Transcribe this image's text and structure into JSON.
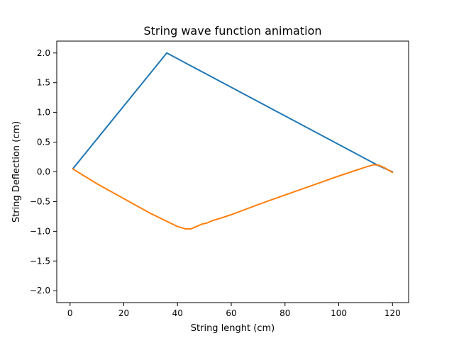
{
  "chart_data": {
    "type": "line",
    "title": "String wave function animation",
    "xlabel": "String lenght (cm)",
    "ylabel": "String Deflection (cm)",
    "xlim": [
      -4.95,
      126.0
    ],
    "ylim": [
      -2.2,
      2.2
    ],
    "xticks": [
      0,
      20,
      40,
      60,
      80,
      100,
      120
    ],
    "yticks": [
      -2.0,
      -1.5,
      -1.0,
      -0.5,
      0.0,
      0.5,
      1.0,
      1.5,
      2.0
    ],
    "xtick_labels": [
      "0",
      "20",
      "40",
      "60",
      "80",
      "100",
      "120"
    ],
    "ytick_labels": [
      "−2.0",
      "−1.5",
      "−1.0",
      "−0.5",
      "0.0",
      "0.5",
      "1.0",
      "1.5",
      "2.0"
    ],
    "grid": false,
    "series": [
      {
        "color": "#1f77b4",
        "x": [
          1,
          36,
          115,
          120
        ],
        "y": [
          0.05,
          2.0,
          0.1,
          0.0
        ]
      },
      {
        "color": "#ff7f0e",
        "x": [
          1,
          10,
          20,
          30,
          40,
          43,
          45,
          47,
          49,
          51,
          53,
          56,
          60,
          70,
          80,
          90,
          100,
          110,
          113,
          115,
          117,
          120
        ],
        "y": [
          0.05,
          -0.2,
          -0.45,
          -0.7,
          -0.92,
          -0.96,
          -0.96,
          -0.92,
          -0.88,
          -0.86,
          -0.82,
          -0.78,
          -0.72,
          -0.55,
          -0.39,
          -0.23,
          -0.07,
          0.08,
          0.12,
          0.11,
          0.07,
          -0.01
        ]
      }
    ]
  }
}
